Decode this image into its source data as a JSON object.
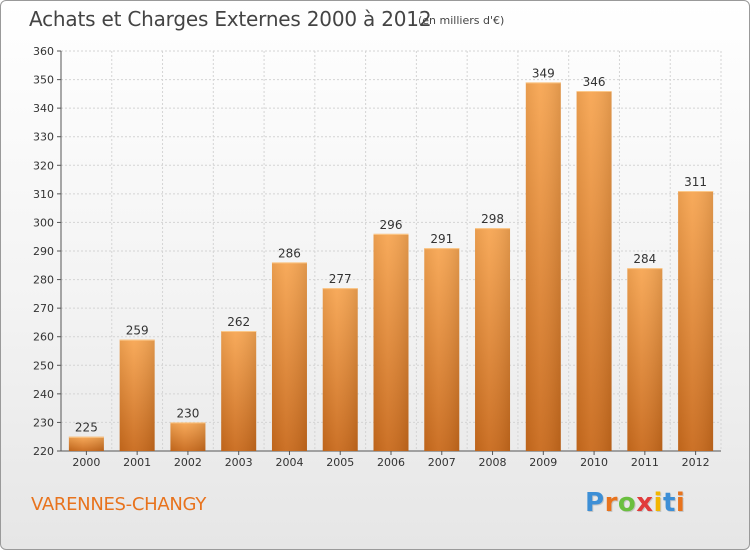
{
  "header": {
    "title": "Achats et Charges Externes 2000 à 2012",
    "subtitle": "(en milliers d'€)"
  },
  "footer": {
    "place": "VARENNES-CHANGY",
    "logo": {
      "text": "Proxiti",
      "letter_colors": [
        "#3d8fd6",
        "#e8731d",
        "#6abf3f",
        "#e13b3b",
        "#f2b600",
        "#3d8fd6",
        "#e8731d"
      ]
    }
  },
  "colors": {
    "bar_top": "#f7a653",
    "bar_bottom": "#c96a1c",
    "grid": "#d4d4d4",
    "axis": "#555555",
    "text": "#333333"
  },
  "chart_data": {
    "type": "bar",
    "title": "Achats et Charges Externes 2000 à 2012",
    "subtitle": "(en milliers d'€)",
    "categories": [
      "2000",
      "2001",
      "2002",
      "2003",
      "2004",
      "2005",
      "2006",
      "2007",
      "2008",
      "2009",
      "2010",
      "2011",
      "2012"
    ],
    "values": [
      225,
      259,
      230,
      262,
      286,
      277,
      296,
      291,
      298,
      349,
      346,
      284,
      311
    ],
    "ylim": [
      220,
      360
    ],
    "yticks": [
      220,
      230,
      240,
      250,
      260,
      270,
      280,
      290,
      300,
      310,
      320,
      330,
      340,
      350,
      360
    ],
    "grid": true,
    "data_labels": true,
    "xlabel": "",
    "ylabel": ""
  }
}
